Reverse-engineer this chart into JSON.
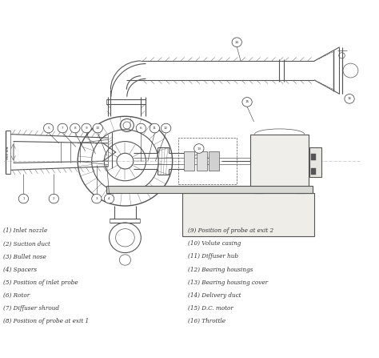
{
  "background_color": "#f5f5f0",
  "line_color": "#555555",
  "dark_color": "#333333",
  "legend_items_left": [
    "(1) Inlet nozzle",
    "(2) Suction duct",
    "(3) Bullet nose",
    "(4) Spacers",
    "(5) Position of inlet probe",
    "(6) Rotor",
    "(7) Diffuser shroud",
    "(8) Position of probe at exit 1"
  ],
  "legend_items_right": [
    "(9) Position of probe at exit 2",
    "(10) Volute casing",
    "(11) Diffuser hub",
    "(12) Bearing housings",
    "(13) Bearing housing cover",
    "(14) Delivery duct",
    "(15) D.C. motor",
    "(16) Throttle"
  ],
  "dim_text": "300 dia.",
  "fig_width": 4.74,
  "fig_height": 4.47,
  "dpi": 100
}
